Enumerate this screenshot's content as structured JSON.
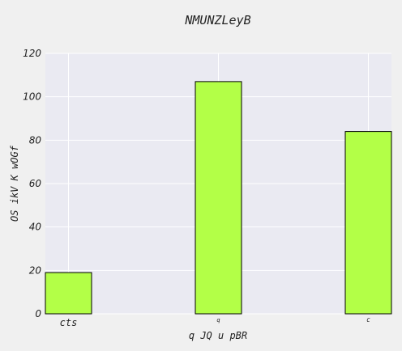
{
  "chart_data": {
    "type": "bar",
    "title": "NMUNZLeyB",
    "xlabel": "q JQ u pBR",
    "ylabel": "OS ikV K wOGf",
    "categories": [
      "cts",
      "q",
      "C"
    ],
    "values": [
      19,
      107,
      84
    ],
    "ylim": [
      0,
      120
    ],
    "yticks": [
      0,
      20,
      40,
      60,
      80,
      100,
      120
    ],
    "grid": true,
    "bar_color": "#b3ff47",
    "bar_edge_color": "#000000",
    "plot_background": "#eaeaf2",
    "page_background": "#f0f0f0"
  }
}
